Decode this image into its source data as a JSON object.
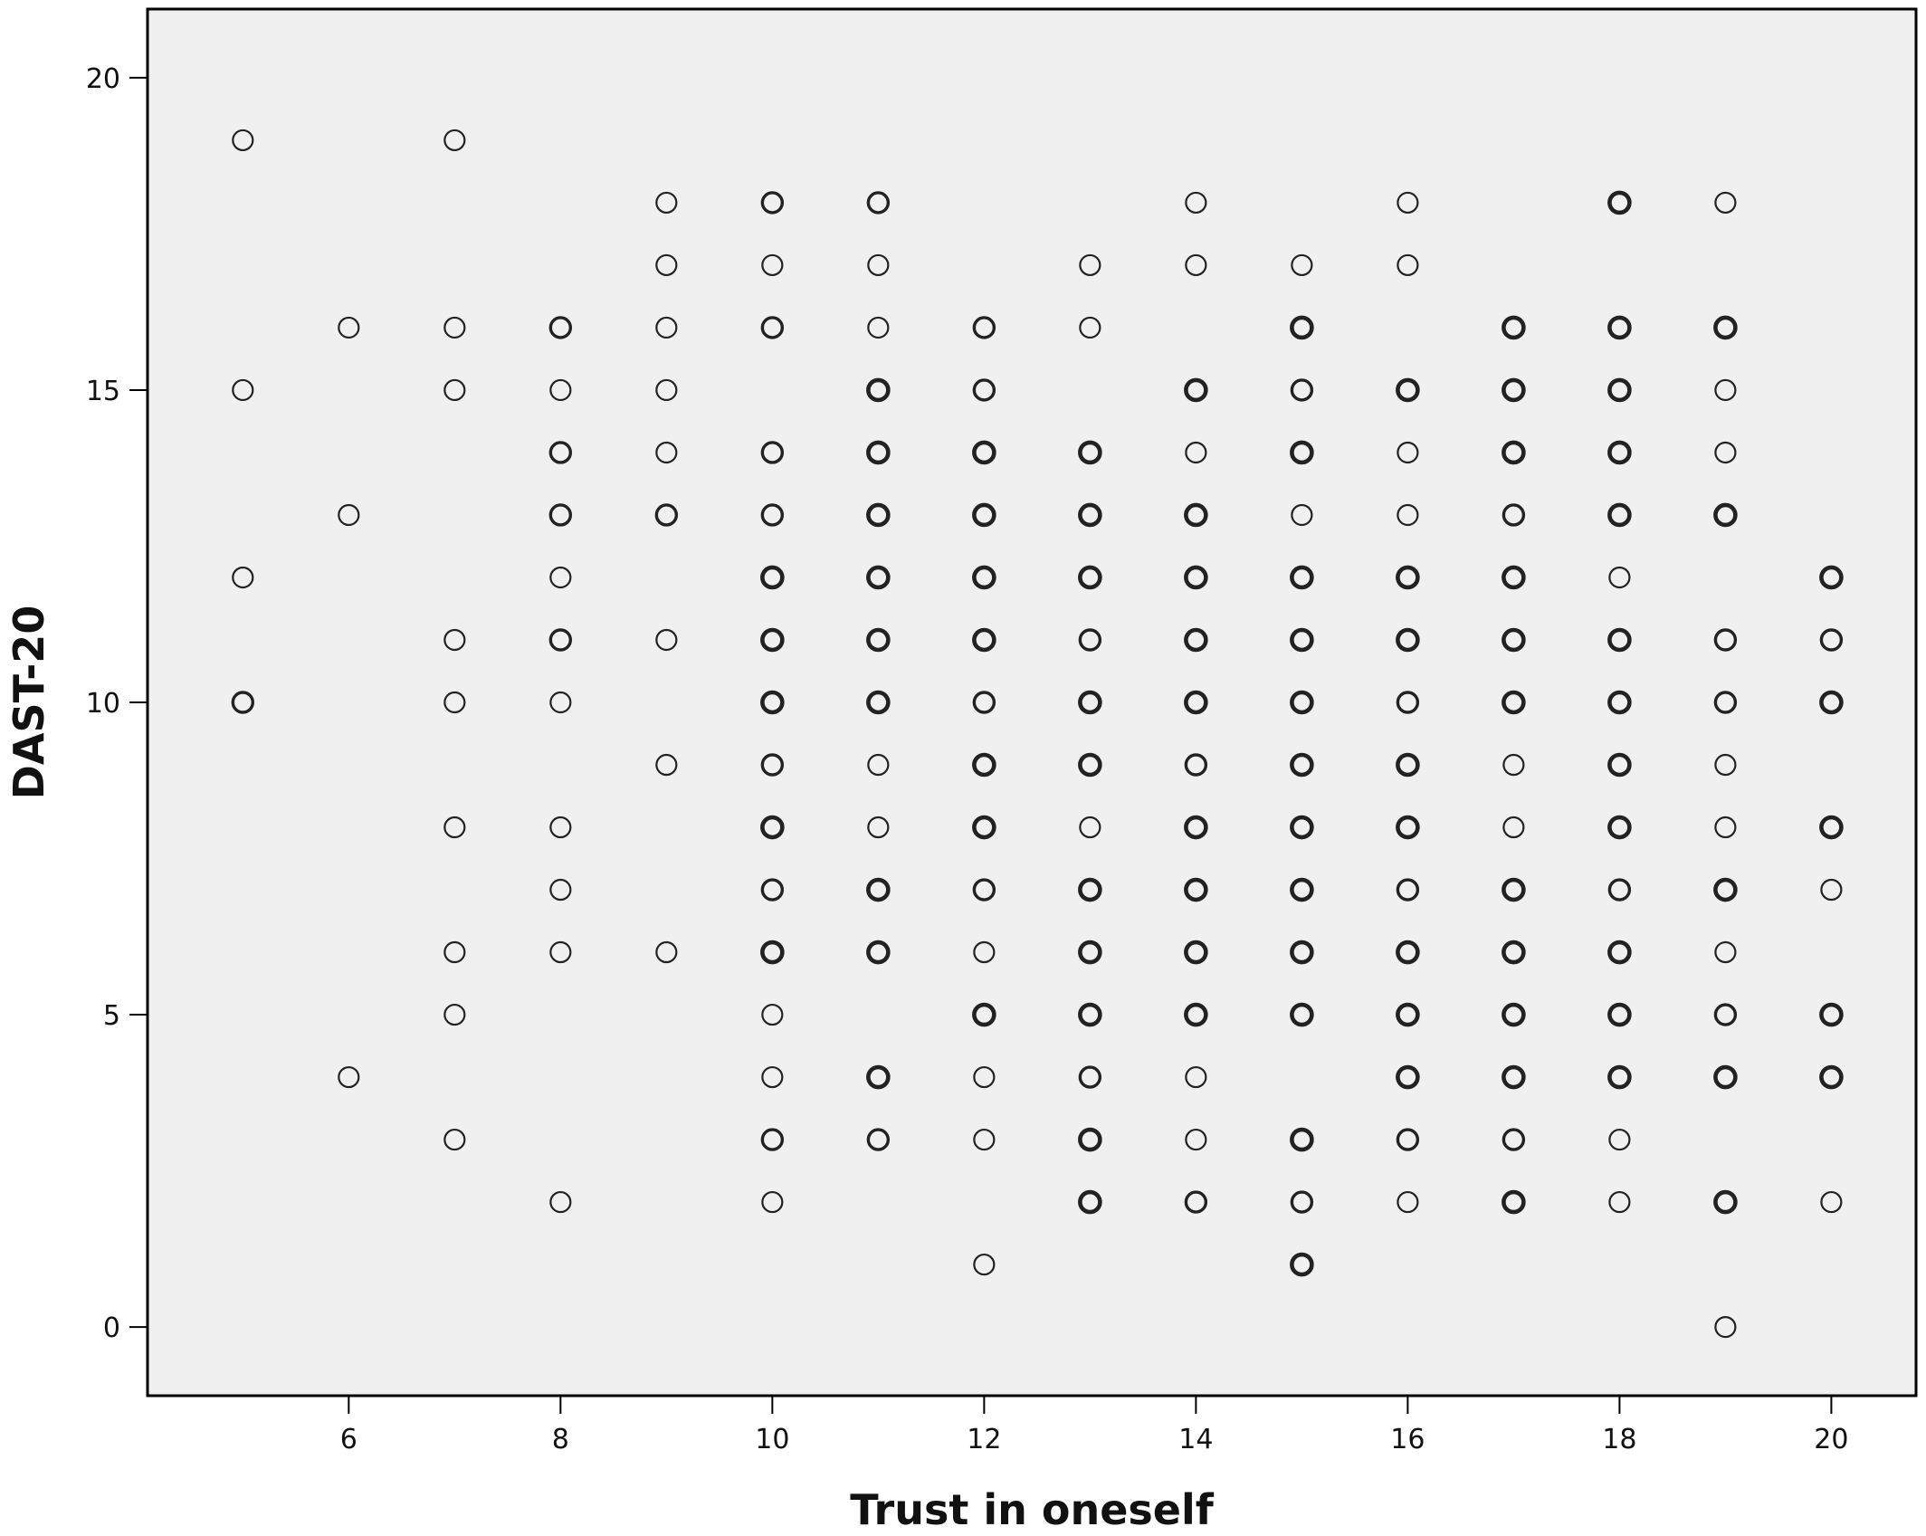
{
  "chart_data": {
    "type": "scatter",
    "title": "",
    "xlabel": "Trust in oneself",
    "ylabel": "DAST-20",
    "xlim": [
      4.1,
      20.8
    ],
    "ylim": [
      -1.1,
      21.1
    ],
    "xticks": [
      6,
      8,
      10,
      12,
      14,
      16,
      18,
      20
    ],
    "yticks": [
      0,
      5,
      10,
      15,
      20
    ],
    "grid": false,
    "legend": "none",
    "colors": {
      "plot_background": "#f0f0f0",
      "marker_stroke": "#222222",
      "frame": "#000000"
    },
    "points": [
      {
        "x": 5,
        "y": 19,
        "n": 1
      },
      {
        "x": 5,
        "y": 15,
        "n": 1
      },
      {
        "x": 5,
        "y": 12,
        "n": 1
      },
      {
        "x": 5,
        "y": 10,
        "n": 2
      },
      {
        "x": 6,
        "y": 16,
        "n": 1
      },
      {
        "x": 6,
        "y": 13,
        "n": 1
      },
      {
        "x": 6,
        "y": 4,
        "n": 1
      },
      {
        "x": 7,
        "y": 19,
        "n": 1
      },
      {
        "x": 7,
        "y": 16,
        "n": 1
      },
      {
        "x": 7,
        "y": 15,
        "n": 1
      },
      {
        "x": 7,
        "y": 11,
        "n": 1
      },
      {
        "x": 7,
        "y": 10,
        "n": 1
      },
      {
        "x": 7,
        "y": 8,
        "n": 1
      },
      {
        "x": 7,
        "y": 6,
        "n": 1
      },
      {
        "x": 7,
        "y": 5,
        "n": 1
      },
      {
        "x": 7,
        "y": 3,
        "n": 1
      },
      {
        "x": 8,
        "y": 16,
        "n": 2
      },
      {
        "x": 8,
        "y": 15,
        "n": 1
      },
      {
        "x": 8,
        "y": 14,
        "n": 2
      },
      {
        "x": 8,
        "y": 13,
        "n": 2
      },
      {
        "x": 8,
        "y": 12,
        "n": 1
      },
      {
        "x": 8,
        "y": 11,
        "n": 2
      },
      {
        "x": 8,
        "y": 10,
        "n": 1
      },
      {
        "x": 8,
        "y": 8,
        "n": 1
      },
      {
        "x": 8,
        "y": 7,
        "n": 1
      },
      {
        "x": 8,
        "y": 6,
        "n": 1
      },
      {
        "x": 8,
        "y": 2,
        "n": 1
      },
      {
        "x": 9,
        "y": 18,
        "n": 1
      },
      {
        "x": 9,
        "y": 17,
        "n": 1
      },
      {
        "x": 9,
        "y": 16,
        "n": 1
      },
      {
        "x": 9,
        "y": 15,
        "n": 1
      },
      {
        "x": 9,
        "y": 14,
        "n": 1
      },
      {
        "x": 9,
        "y": 13,
        "n": 2
      },
      {
        "x": 9,
        "y": 11,
        "n": 1
      },
      {
        "x": 9,
        "y": 9,
        "n": 1
      },
      {
        "x": 9,
        "y": 6,
        "n": 1
      },
      {
        "x": 10,
        "y": 18,
        "n": 2
      },
      {
        "x": 10,
        "y": 17,
        "n": 1
      },
      {
        "x": 10,
        "y": 16,
        "n": 2
      },
      {
        "x": 10,
        "y": 14,
        "n": 2
      },
      {
        "x": 10,
        "y": 13,
        "n": 2
      },
      {
        "x": 10,
        "y": 12,
        "n": 3
      },
      {
        "x": 10,
        "y": 11,
        "n": 3
      },
      {
        "x": 10,
        "y": 10,
        "n": 3
      },
      {
        "x": 10,
        "y": 9,
        "n": 2
      },
      {
        "x": 10,
        "y": 8,
        "n": 3
      },
      {
        "x": 10,
        "y": 7,
        "n": 2
      },
      {
        "x": 10,
        "y": 6,
        "n": 3
      },
      {
        "x": 10,
        "y": 5,
        "n": 1
      },
      {
        "x": 10,
        "y": 4,
        "n": 1
      },
      {
        "x": 10,
        "y": 3,
        "n": 2
      },
      {
        "x": 10,
        "y": 2,
        "n": 1
      },
      {
        "x": 11,
        "y": 18,
        "n": 2
      },
      {
        "x": 11,
        "y": 17,
        "n": 1
      },
      {
        "x": 11,
        "y": 16,
        "n": 1
      },
      {
        "x": 11,
        "y": 15,
        "n": 3
      },
      {
        "x": 11,
        "y": 14,
        "n": 3
      },
      {
        "x": 11,
        "y": 13,
        "n": 3
      },
      {
        "x": 11,
        "y": 12,
        "n": 3
      },
      {
        "x": 11,
        "y": 11,
        "n": 3
      },
      {
        "x": 11,
        "y": 10,
        "n": 3
      },
      {
        "x": 11,
        "y": 9,
        "n": 1
      },
      {
        "x": 11,
        "y": 8,
        "n": 1
      },
      {
        "x": 11,
        "y": 7,
        "n": 3
      },
      {
        "x": 11,
        "y": 6,
        "n": 3
      },
      {
        "x": 11,
        "y": 4,
        "n": 3
      },
      {
        "x": 11,
        "y": 3,
        "n": 2
      },
      {
        "x": 12,
        "y": 16,
        "n": 2
      },
      {
        "x": 12,
        "y": 15,
        "n": 2
      },
      {
        "x": 12,
        "y": 14,
        "n": 3
      },
      {
        "x": 12,
        "y": 13,
        "n": 3
      },
      {
        "x": 12,
        "y": 12,
        "n": 3
      },
      {
        "x": 12,
        "y": 11,
        "n": 3
      },
      {
        "x": 12,
        "y": 10,
        "n": 2
      },
      {
        "x": 12,
        "y": 9,
        "n": 3
      },
      {
        "x": 12,
        "y": 8,
        "n": 3
      },
      {
        "x": 12,
        "y": 7,
        "n": 2
      },
      {
        "x": 12,
        "y": 6,
        "n": 1
      },
      {
        "x": 12,
        "y": 5,
        "n": 3
      },
      {
        "x": 12,
        "y": 4,
        "n": 1
      },
      {
        "x": 12,
        "y": 3,
        "n": 1
      },
      {
        "x": 12,
        "y": 1,
        "n": 1
      },
      {
        "x": 13,
        "y": 17,
        "n": 1
      },
      {
        "x": 13,
        "y": 16,
        "n": 1
      },
      {
        "x": 13,
        "y": 14,
        "n": 3
      },
      {
        "x": 13,
        "y": 13,
        "n": 3
      },
      {
        "x": 13,
        "y": 12,
        "n": 3
      },
      {
        "x": 13,
        "y": 11,
        "n": 2
      },
      {
        "x": 13,
        "y": 10,
        "n": 3
      },
      {
        "x": 13,
        "y": 9,
        "n": 3
      },
      {
        "x": 13,
        "y": 8,
        "n": 1
      },
      {
        "x": 13,
        "y": 7,
        "n": 3
      },
      {
        "x": 13,
        "y": 6,
        "n": 3
      },
      {
        "x": 13,
        "y": 5,
        "n": 3
      },
      {
        "x": 13,
        "y": 4,
        "n": 2
      },
      {
        "x": 13,
        "y": 3,
        "n": 3
      },
      {
        "x": 13,
        "y": 2,
        "n": 3
      },
      {
        "x": 14,
        "y": 18,
        "n": 1
      },
      {
        "x": 14,
        "y": 17,
        "n": 1
      },
      {
        "x": 14,
        "y": 15,
        "n": 3
      },
      {
        "x": 14,
        "y": 14,
        "n": 1
      },
      {
        "x": 14,
        "y": 13,
        "n": 3
      },
      {
        "x": 14,
        "y": 12,
        "n": 3
      },
      {
        "x": 14,
        "y": 11,
        "n": 3
      },
      {
        "x": 14,
        "y": 10,
        "n": 3
      },
      {
        "x": 14,
        "y": 9,
        "n": 2
      },
      {
        "x": 14,
        "y": 8,
        "n": 3
      },
      {
        "x": 14,
        "y": 7,
        "n": 3
      },
      {
        "x": 14,
        "y": 6,
        "n": 3
      },
      {
        "x": 14,
        "y": 5,
        "n": 3
      },
      {
        "x": 14,
        "y": 4,
        "n": 1
      },
      {
        "x": 14,
        "y": 3,
        "n": 1
      },
      {
        "x": 14,
        "y": 2,
        "n": 2
      },
      {
        "x": 15,
        "y": 17,
        "n": 1
      },
      {
        "x": 15,
        "y": 16,
        "n": 3
      },
      {
        "x": 15,
        "y": 15,
        "n": 2
      },
      {
        "x": 15,
        "y": 14,
        "n": 3
      },
      {
        "x": 15,
        "y": 13,
        "n": 1
      },
      {
        "x": 15,
        "y": 12,
        "n": 3
      },
      {
        "x": 15,
        "y": 11,
        "n": 3
      },
      {
        "x": 15,
        "y": 10,
        "n": 3
      },
      {
        "x": 15,
        "y": 9,
        "n": 3
      },
      {
        "x": 15,
        "y": 8,
        "n": 3
      },
      {
        "x": 15,
        "y": 7,
        "n": 3
      },
      {
        "x": 15,
        "y": 6,
        "n": 3
      },
      {
        "x": 15,
        "y": 5,
        "n": 3
      },
      {
        "x": 15,
        "y": 3,
        "n": 3
      },
      {
        "x": 15,
        "y": 2,
        "n": 2
      },
      {
        "x": 15,
        "y": 1,
        "n": 3
      },
      {
        "x": 16,
        "y": 18,
        "n": 1
      },
      {
        "x": 16,
        "y": 17,
        "n": 1
      },
      {
        "x": 16,
        "y": 15,
        "n": 3
      },
      {
        "x": 16,
        "y": 14,
        "n": 1
      },
      {
        "x": 16,
        "y": 13,
        "n": 1
      },
      {
        "x": 16,
        "y": 12,
        "n": 3
      },
      {
        "x": 16,
        "y": 11,
        "n": 3
      },
      {
        "x": 16,
        "y": 10,
        "n": 2
      },
      {
        "x": 16,
        "y": 9,
        "n": 3
      },
      {
        "x": 16,
        "y": 8,
        "n": 3
      },
      {
        "x": 16,
        "y": 7,
        "n": 2
      },
      {
        "x": 16,
        "y": 6,
        "n": 3
      },
      {
        "x": 16,
        "y": 5,
        "n": 3
      },
      {
        "x": 16,
        "y": 4,
        "n": 3
      },
      {
        "x": 16,
        "y": 3,
        "n": 2
      },
      {
        "x": 16,
        "y": 2,
        "n": 1
      },
      {
        "x": 17,
        "y": 16,
        "n": 3
      },
      {
        "x": 17,
        "y": 15,
        "n": 3
      },
      {
        "x": 17,
        "y": 14,
        "n": 3
      },
      {
        "x": 17,
        "y": 13,
        "n": 2
      },
      {
        "x": 17,
        "y": 12,
        "n": 3
      },
      {
        "x": 17,
        "y": 11,
        "n": 3
      },
      {
        "x": 17,
        "y": 10,
        "n": 3
      },
      {
        "x": 17,
        "y": 9,
        "n": 1
      },
      {
        "x": 17,
        "y": 8,
        "n": 1
      },
      {
        "x": 17,
        "y": 7,
        "n": 3
      },
      {
        "x": 17,
        "y": 6,
        "n": 3
      },
      {
        "x": 17,
        "y": 5,
        "n": 3
      },
      {
        "x": 17,
        "y": 4,
        "n": 3
      },
      {
        "x": 17,
        "y": 3,
        "n": 2
      },
      {
        "x": 17,
        "y": 2,
        "n": 3
      },
      {
        "x": 18,
        "y": 18,
        "n": 3
      },
      {
        "x": 18,
        "y": 16,
        "n": 3
      },
      {
        "x": 18,
        "y": 15,
        "n": 3
      },
      {
        "x": 18,
        "y": 14,
        "n": 3
      },
      {
        "x": 18,
        "y": 13,
        "n": 3
      },
      {
        "x": 18,
        "y": 12,
        "n": 1
      },
      {
        "x": 18,
        "y": 11,
        "n": 3
      },
      {
        "x": 18,
        "y": 10,
        "n": 3
      },
      {
        "x": 18,
        "y": 9,
        "n": 3
      },
      {
        "x": 18,
        "y": 8,
        "n": 3
      },
      {
        "x": 18,
        "y": 7,
        "n": 2
      },
      {
        "x": 18,
        "y": 6,
        "n": 3
      },
      {
        "x": 18,
        "y": 5,
        "n": 3
      },
      {
        "x": 18,
        "y": 4,
        "n": 3
      },
      {
        "x": 18,
        "y": 3,
        "n": 1
      },
      {
        "x": 18,
        "y": 2,
        "n": 1
      },
      {
        "x": 19,
        "y": 18,
        "n": 1
      },
      {
        "x": 19,
        "y": 16,
        "n": 3
      },
      {
        "x": 19,
        "y": 15,
        "n": 1
      },
      {
        "x": 19,
        "y": 14,
        "n": 1
      },
      {
        "x": 19,
        "y": 13,
        "n": 3
      },
      {
        "x": 19,
        "y": 11,
        "n": 2
      },
      {
        "x": 19,
        "y": 10,
        "n": 2
      },
      {
        "x": 19,
        "y": 9,
        "n": 1
      },
      {
        "x": 19,
        "y": 8,
        "n": 1
      },
      {
        "x": 19,
        "y": 7,
        "n": 3
      },
      {
        "x": 19,
        "y": 6,
        "n": 1
      },
      {
        "x": 19,
        "y": 5,
        "n": 2
      },
      {
        "x": 19,
        "y": 4,
        "n": 3
      },
      {
        "x": 19,
        "y": 2,
        "n": 3
      },
      {
        "x": 19,
        "y": 0,
        "n": 1
      },
      {
        "x": 20,
        "y": 12,
        "n": 3
      },
      {
        "x": 20,
        "y": 11,
        "n": 2
      },
      {
        "x": 20,
        "y": 10,
        "n": 3
      },
      {
        "x": 20,
        "y": 8,
        "n": 3
      },
      {
        "x": 20,
        "y": 7,
        "n": 1
      },
      {
        "x": 20,
        "y": 5,
        "n": 3
      },
      {
        "x": 20,
        "y": 4,
        "n": 3
      },
      {
        "x": 20,
        "y": 2,
        "n": 1
      }
    ]
  }
}
